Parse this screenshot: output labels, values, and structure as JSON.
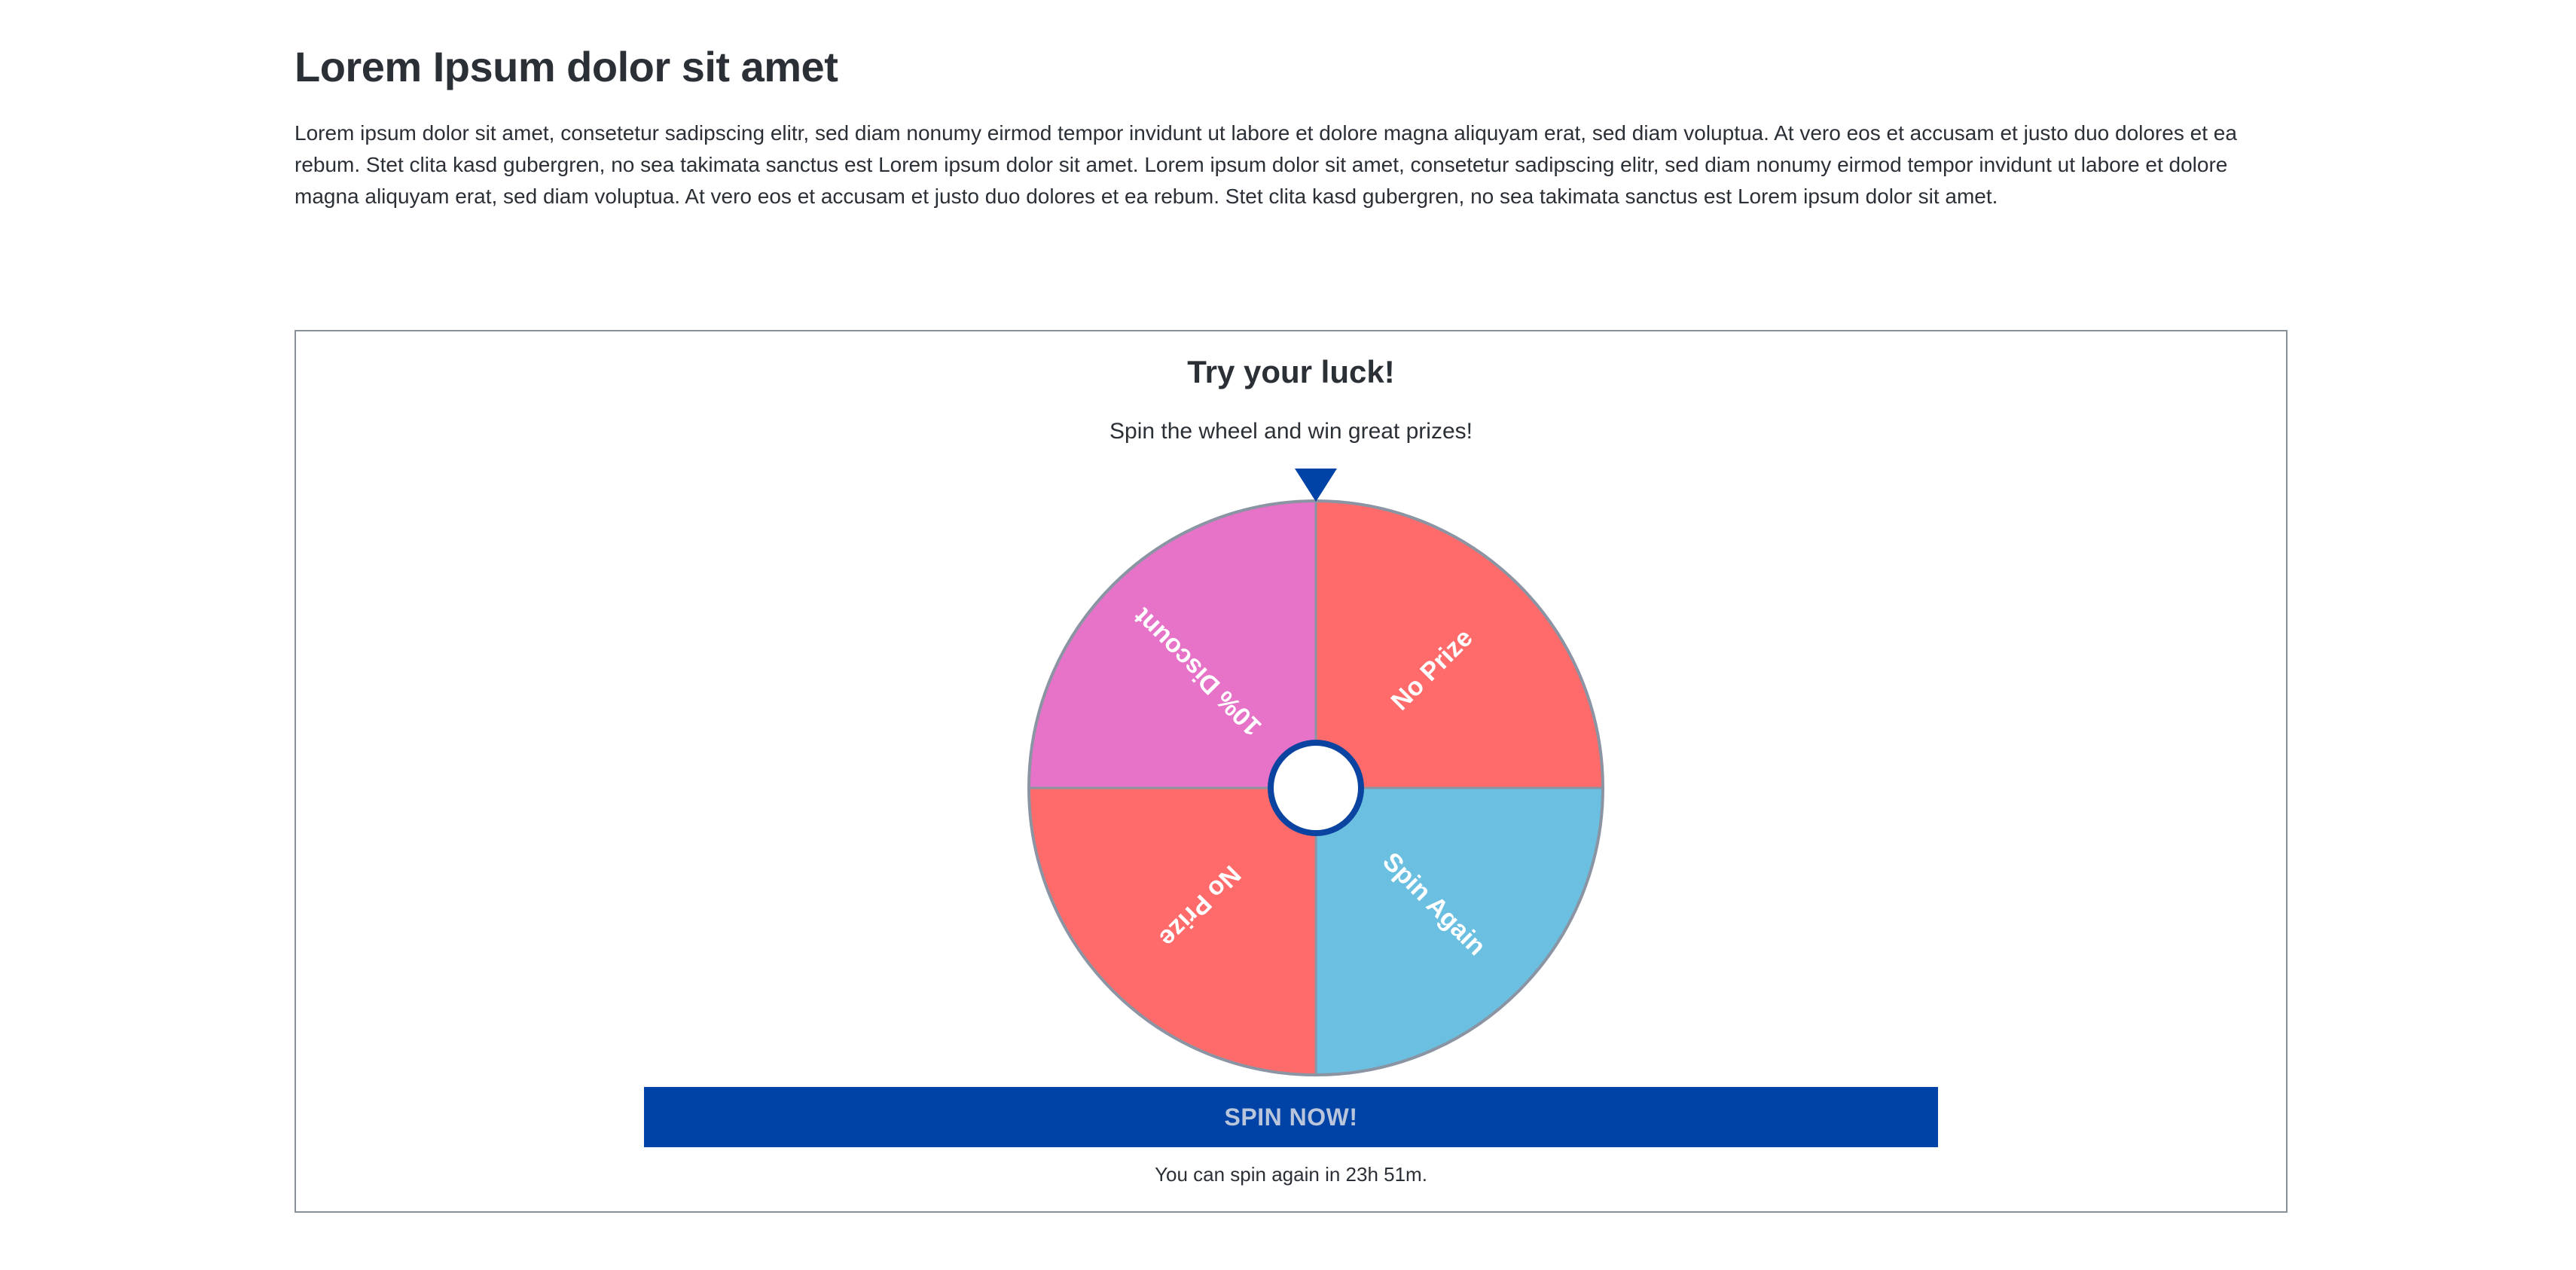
{
  "page": {
    "title": "Lorem Ipsum dolor sit amet",
    "intro": "Lorem ipsum dolor sit amet, consetetur sadipscing elitr, sed diam nonumy eirmod tempor invidunt ut labore et dolore magna aliquyam erat, sed diam voluptua. At vero eos et accusam et justo duo dolores et ea rebum. Stet clita kasd gubergren, no sea takimata sanctus est Lorem ipsum dolor sit amet. Lorem ipsum dolor sit amet, consetetur sadipscing elitr, sed diam nonumy eirmod tempor invidunt ut labore et dolore magna aliquyam erat, sed diam voluptua. At vero eos et accusam et justo duo dolores et ea rebum. Stet clita kasd gubergren, no sea takimata sanctus est Lorem ipsum dolor sit amet."
  },
  "wheel": {
    "title": "Try your luck!",
    "subtitle": "Spin the wheel and win great prizes!",
    "segments": [
      {
        "label": "No Prize",
        "color": "#ff6b6b"
      },
      {
        "label": "Spin Again",
        "color": "#6bbfe0"
      },
      {
        "label": "No Prize",
        "color": "#ff6b6b"
      },
      {
        "label": "10% Discount",
        "color": "#e673c7"
      }
    ],
    "pointer_color": "#0043a7",
    "hub_ring_color": "#0a43a0",
    "rim_color": "#8a94a3",
    "spin_button_label": "SPIN NOW!",
    "cooldown_text": "You can spin again in 23h 51m."
  }
}
